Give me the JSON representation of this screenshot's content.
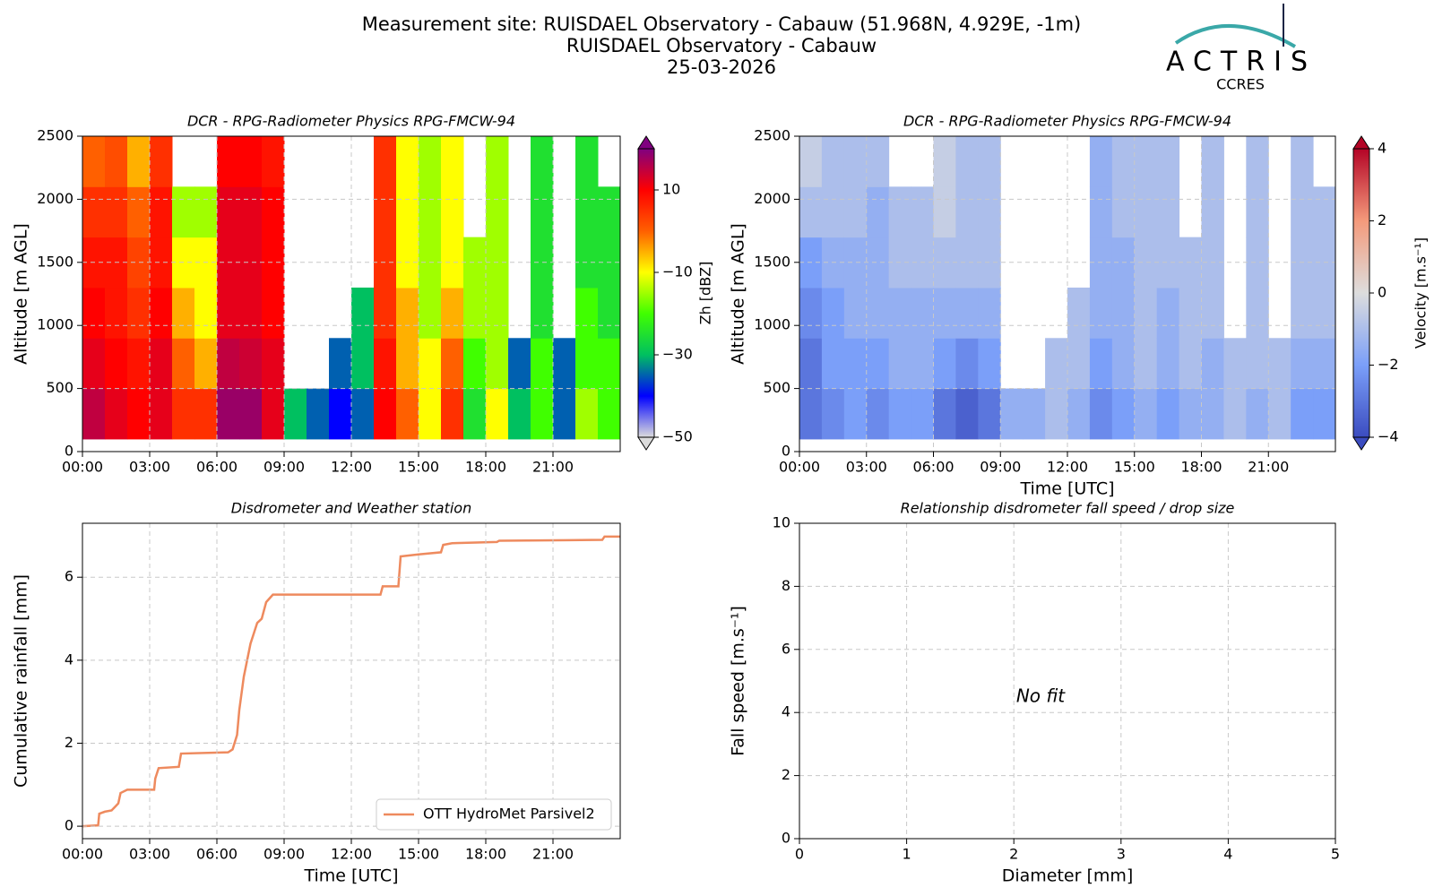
{
  "header": {
    "lines": [
      "Measurement site: RUISDAEL Observatory - Cabauw (51.968N, 4.929E, -1m)",
      "RUISDAEL Observatory - Cabauw",
      "25-03-2026"
    ],
    "logo": {
      "name": "ACTRIS",
      "sub": "CCRES"
    }
  },
  "chart_data": [
    {
      "type": "heatmap",
      "title": "DCR - RPG-Radiometer Physics RPG-FMCW-94",
      "ylabel": "Altitude [m AGL]",
      "clabel": "Zh [dBZ]",
      "xlim": [
        0,
        24
      ],
      "ylim": [
        0,
        2500
      ],
      "xticks": [
        {
          "value": 0,
          "label": "00:00"
        },
        {
          "value": 3,
          "label": "03:00"
        },
        {
          "value": 6,
          "label": "06:00"
        },
        {
          "value": 9,
          "label": "09:00"
        },
        {
          "value": 12,
          "label": "12:00"
        },
        {
          "value": 15,
          "label": "15:00"
        },
        {
          "value": 18,
          "label": "18:00"
        },
        {
          "value": 21,
          "label": "21:00"
        }
      ],
      "yticks": [
        0,
        500,
        1000,
        1500,
        2000,
        2500
      ],
      "grid": true,
      "x_edges": [
        0,
        1,
        2,
        3,
        4,
        5,
        6,
        7,
        8,
        9,
        10,
        11,
        12,
        13,
        14,
        15,
        16,
        17,
        18,
        19,
        20,
        21,
        22,
        23,
        24
      ],
      "y_edges": [
        100,
        500,
        900,
        1300,
        1700,
        2100,
        2500
      ],
      "z": [
        [
          15,
          12,
          10,
          8,
          5,
          0
        ],
        [
          12,
          10,
          8,
          8,
          5,
          2
        ],
        [
          10,
          8,
          5,
          3,
          0,
          -5
        ],
        [
          12,
          12,
          10,
          8,
          8,
          5
        ],
        [
          5,
          0,
          -5,
          -10,
          -15,
          null
        ],
        [
          5,
          -5,
          -10,
          -10,
          -15,
          null
        ],
        [
          18,
          15,
          12,
          12,
          12,
          10
        ],
        [
          18,
          14,
          12,
          12,
          12,
          10
        ],
        [
          12,
          12,
          10,
          10,
          10,
          8
        ],
        [
          -30,
          null,
          null,
          null,
          null,
          null
        ],
        [
          -35,
          null,
          null,
          null,
          null,
          null
        ],
        [
          -40,
          -35,
          null,
          null,
          null,
          null
        ],
        [
          -35,
          -30,
          -30,
          null,
          null,
          null
        ],
        [
          10,
          8,
          5,
          5,
          5,
          5
        ],
        [
          0,
          -5,
          -5,
          -10,
          -10,
          -10
        ],
        [
          -10,
          -10,
          -15,
          -15,
          -15,
          -15
        ],
        [
          5,
          0,
          -5,
          -10,
          -10,
          -10
        ],
        [
          -25,
          -20,
          -15,
          -15,
          null,
          null
        ],
        [
          -10,
          -15,
          -15,
          -15,
          -15,
          -15
        ],
        [
          -30,
          -35,
          null,
          null,
          null,
          null
        ],
        [
          -20,
          -20,
          -25,
          -25,
          -25,
          -25
        ],
        [
          -35,
          -35,
          null,
          null,
          null,
          null
        ],
        [
          -15,
          -20,
          -20,
          -25,
          -25,
          -25
        ],
        [
          -20,
          -20,
          -25,
          -25,
          -25,
          null
        ]
      ],
      "colormap": [
        "#dcdcdc",
        "#0000ff",
        "#00c060",
        "#40ff00",
        "#ffff00",
        "#ff6000",
        "#ff0000",
        "#800080"
      ],
      "clim": [
        -50,
        20
      ],
      "cticks": [
        10,
        {
          "value": -10,
          "label": "−10"
        },
        {
          "value": -30,
          "label": "−30"
        },
        {
          "value": -50,
          "label": "−50"
        }
      ]
    },
    {
      "type": "heatmap",
      "title": "DCR - RPG-Radiometer Physics RPG-FMCW-94",
      "xlabel": "Time [UTC]",
      "ylabel": "Altitude [m AGL]",
      "clabel": "Velocity [m.s⁻¹]",
      "xlim": [
        0,
        24
      ],
      "ylim": [
        0,
        2500
      ],
      "xticks": [
        {
          "value": 0,
          "label": "00:00"
        },
        {
          "value": 3,
          "label": "03:00"
        },
        {
          "value": 6,
          "label": "06:00"
        },
        {
          "value": 9,
          "label": "09:00"
        },
        {
          "value": 12,
          "label": "12:00"
        },
        {
          "value": 15,
          "label": "15:00"
        },
        {
          "value": 18,
          "label": "18:00"
        },
        {
          "value": 21,
          "label": "21:00"
        }
      ],
      "yticks": [
        0,
        500,
        1000,
        1500,
        2000,
        2500
      ],
      "grid": true,
      "x_edges": [
        0,
        1,
        2,
        3,
        4,
        5,
        6,
        7,
        8,
        9,
        10,
        11,
        12,
        13,
        14,
        15,
        16,
        17,
        18,
        19,
        20,
        21,
        22,
        23,
        24
      ],
      "y_edges": [
        100,
        500,
        900,
        1300,
        1700,
        2100,
        2500
      ],
      "z": [
        [
          -3,
          -3,
          -2.5,
          -2,
          -1,
          -0.5
        ],
        [
          -2.5,
          -2,
          -2,
          -1.5,
          -1,
          -1
        ],
        [
          -2,
          -2,
          -1.5,
          -1.5,
          -1,
          -1
        ],
        [
          -2.5,
          -2,
          -1.5,
          -1.5,
          -1.5,
          -1
        ],
        [
          -2,
          -1.5,
          -1.5,
          -1,
          -1,
          null
        ],
        [
          -2,
          -1.5,
          -1.5,
          -1,
          -1,
          null
        ],
        [
          -3,
          -2,
          -1.5,
          -1,
          -0.5,
          -0.5
        ],
        [
          -3.5,
          -2.5,
          -1.5,
          -1,
          -1,
          -1
        ],
        [
          -3,
          -2,
          -1.5,
          -1,
          -1,
          -1
        ],
        [
          -1.5,
          null,
          null,
          null,
          null,
          null
        ],
        [
          -1.5,
          null,
          null,
          null,
          null,
          null
        ],
        [
          -1,
          -1,
          null,
          null,
          null,
          null
        ],
        [
          -1.5,
          -1,
          -1,
          null,
          null,
          null
        ],
        [
          -2.5,
          -2,
          -1.5,
          -1.5,
          -1.5,
          -1.5
        ],
        [
          -2,
          -1.5,
          -1.5,
          -1.5,
          -1,
          -1
        ],
        [
          -1.5,
          -1,
          -1,
          -1,
          -1,
          -1
        ],
        [
          -2,
          -1.5,
          -1.5,
          -1,
          -1,
          -1
        ],
        [
          -1.5,
          -1,
          -1,
          -1,
          null,
          null
        ],
        [
          -1.5,
          -1.5,
          -1,
          -1,
          -1,
          -1
        ],
        [
          -1,
          -1,
          null,
          null,
          null,
          null
        ],
        [
          -1.5,
          -1,
          -1,
          -1,
          -1,
          -1
        ],
        [
          -1,
          -1,
          null,
          null,
          null,
          null
        ],
        [
          -2,
          -1.5,
          -1,
          -1,
          -1,
          -1
        ],
        [
          -2,
          -1.5,
          -1,
          -1,
          -1,
          null
        ]
      ],
      "colormap": [
        "#3b4cc0",
        "#7b9ff9",
        "#dddddd",
        "#f49a7b",
        "#b40426"
      ],
      "clim": [
        -4,
        4
      ],
      "cticks": [
        4,
        2,
        0,
        {
          "value": -2,
          "label": "−2"
        },
        {
          "value": -4,
          "label": "−4"
        }
      ]
    },
    {
      "type": "line",
      "title": "Disdrometer and Weather station",
      "xlabel": "Time [UTC]",
      "ylabel": "Cumulative rainfall [mm]",
      "xlim": [
        0,
        24
      ],
      "ylim": [
        -0.3,
        7.3
      ],
      "xticks": [
        {
          "value": 0,
          "label": "00:00"
        },
        {
          "value": 3,
          "label": "03:00"
        },
        {
          "value": 6,
          "label": "06:00"
        },
        {
          "value": 9,
          "label": "09:00"
        },
        {
          "value": 12,
          "label": "12:00"
        },
        {
          "value": 15,
          "label": "15:00"
        },
        {
          "value": 18,
          "label": "18:00"
        },
        {
          "value": 21,
          "label": "21:00"
        }
      ],
      "yticks": [
        0,
        2,
        4,
        6
      ],
      "grid": true,
      "legend": "lower right",
      "x": [
        0,
        0.7,
        0.75,
        1.0,
        1.3,
        1.6,
        1.7,
        2.0,
        3.2,
        3.25,
        3.4,
        4.3,
        4.4,
        6.5,
        6.7,
        6.9,
        7.0,
        7.2,
        7.5,
        7.8,
        8.0,
        8.2,
        8.5,
        13.3,
        13.4,
        14.1,
        14.2,
        15.0,
        16.0,
        16.1,
        16.5,
        18.5,
        18.6,
        23.2,
        23.3,
        24
      ],
      "series": [
        {
          "name": "OTT HydroMet Parsivel2",
          "color": "#ee8a5e",
          "values": [
            0,
            0.02,
            0.3,
            0.35,
            0.38,
            0.55,
            0.8,
            0.88,
            0.88,
            1.15,
            1.4,
            1.43,
            1.75,
            1.78,
            1.85,
            2.2,
            2.8,
            3.6,
            4.4,
            4.9,
            5.0,
            5.4,
            5.58,
            5.58,
            5.78,
            5.78,
            6.5,
            6.55,
            6.6,
            6.78,
            6.82,
            6.85,
            6.88,
            6.9,
            6.98,
            6.98
          ]
        }
      ]
    },
    {
      "type": "scatter",
      "title": "Relationship disdrometer fall speed / drop size",
      "xlabel": "Diameter [mm]",
      "ylabel": "Fall speed [m.s⁻¹]",
      "xlim": [
        0,
        5
      ],
      "ylim": [
        0,
        10
      ],
      "xticks": [
        0,
        1,
        2,
        3,
        4,
        5
      ],
      "yticks": [
        0,
        2,
        4,
        6,
        8,
        10
      ],
      "grid": true,
      "annotation": "No fit"
    }
  ]
}
